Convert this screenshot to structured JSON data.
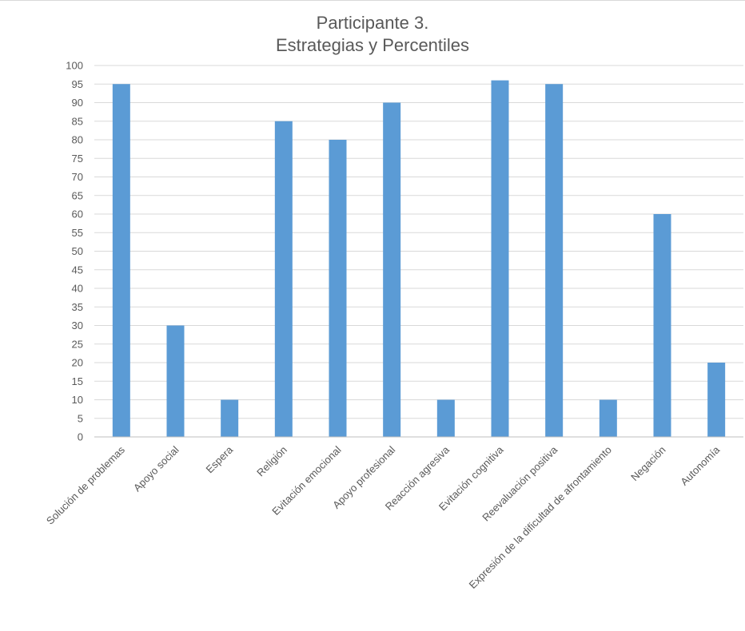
{
  "chart_data": {
    "type": "bar",
    "title": [
      "Participante 3.",
      "Estrategias y Percentiles"
    ],
    "categories": [
      "Solución de problemas",
      "Apoyo social",
      "Espera",
      "Religión",
      "Evitación emocional",
      "Apoyo profesional",
      "Reacción agresiva",
      "Evitación cognitiva",
      "Reevaluación positiva",
      "Expresión de la dificultad de afrontamiento",
      "Negación",
      "Autonomía"
    ],
    "values": [
      95,
      30,
      10,
      85,
      80,
      90,
      10,
      96,
      95,
      10,
      60,
      20
    ],
    "ylim": [
      0,
      100
    ],
    "ytick_step": 5,
    "grid": true,
    "legend": "none",
    "colors": {
      "bar": "#5b9bd5",
      "grid": "#d9d9d9",
      "axis": "#bfbfbf",
      "text": "#595959"
    }
  }
}
